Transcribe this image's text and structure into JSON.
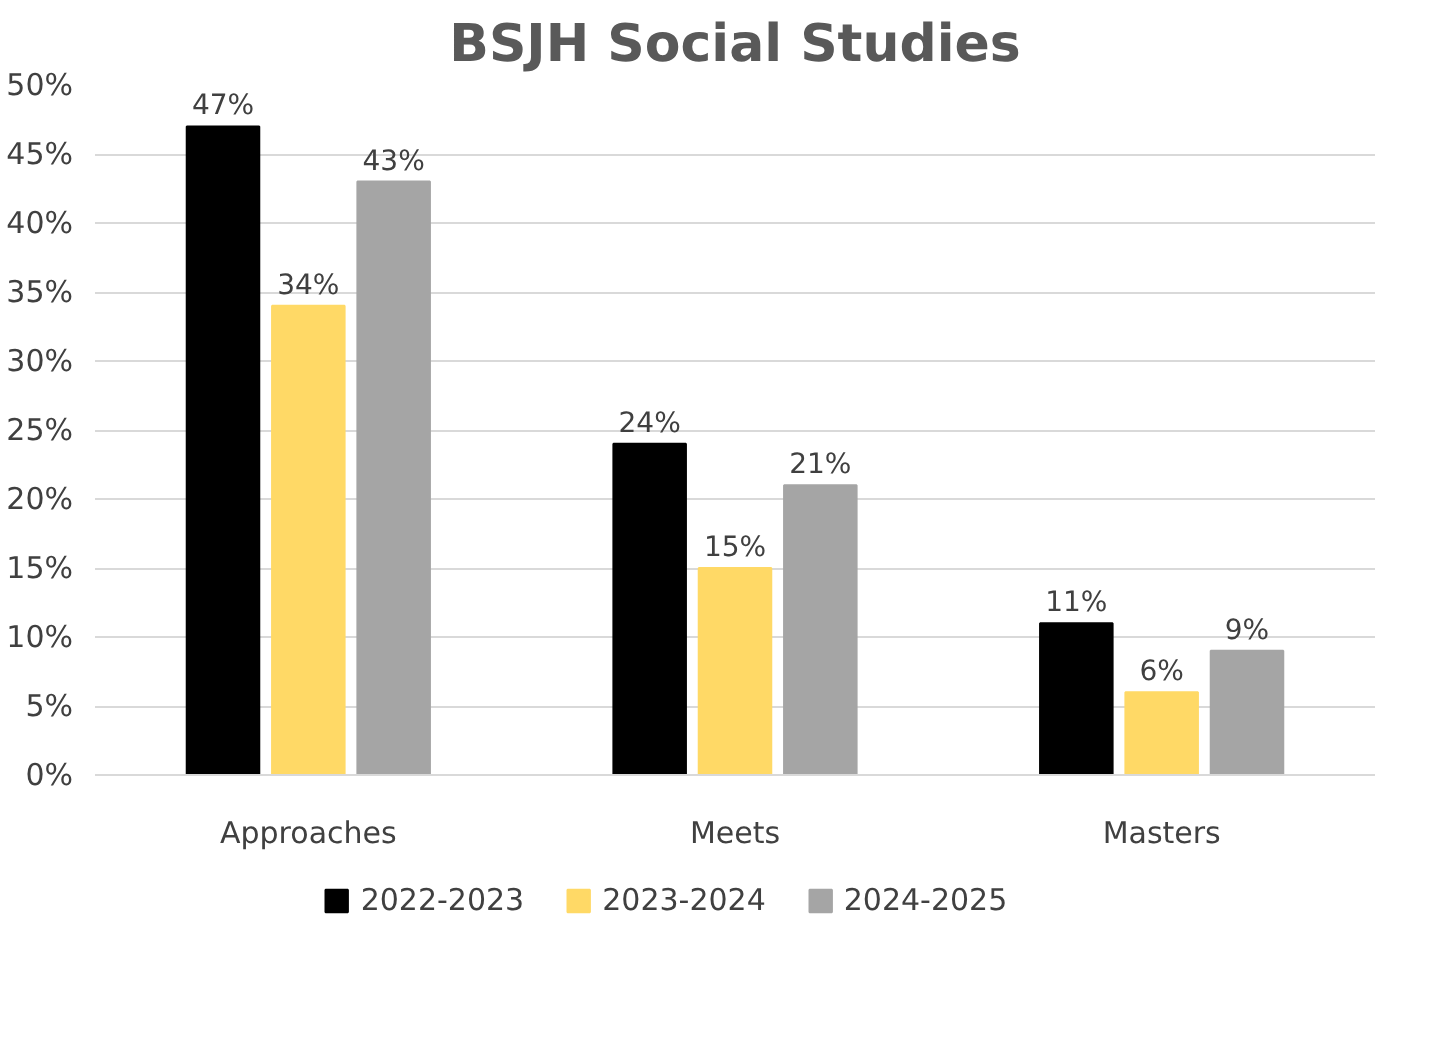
{
  "chart_data": {
    "type": "bar",
    "title": "BSJH Social Studies",
    "categories": [
      "Approaches",
      "Meets",
      "Masters"
    ],
    "series": [
      {
        "name": "2022-2023",
        "color": "#000000",
        "values": [
          47,
          24,
          11
        ],
        "value_labels": [
          "47%",
          "24%",
          "11%"
        ]
      },
      {
        "name": "2023-2024",
        "color": "#ffd966",
        "values": [
          34,
          15,
          6
        ],
        "value_labels": [
          "34%",
          "15%",
          "6%"
        ]
      },
      {
        "name": "2024-2025",
        "color": "#a5a5a5",
        "values": [
          43,
          21,
          9
        ],
        "value_labels": [
          "43%",
          "21%",
          "9%"
        ]
      }
    ],
    "ylim": [
      0,
      50
    ],
    "yticks": [
      {
        "value": 0,
        "label": "0%"
      },
      {
        "value": 5,
        "label": "5%"
      },
      {
        "value": 10,
        "label": "10%"
      },
      {
        "value": 15,
        "label": "15%"
      },
      {
        "value": 20,
        "label": "20%"
      },
      {
        "value": 25,
        "label": "25%"
      },
      {
        "value": 30,
        "label": "30%"
      },
      {
        "value": 35,
        "label": "35%"
      },
      {
        "value": 40,
        "label": "40%"
      },
      {
        "value": 45,
        "label": "45%"
      },
      {
        "value": 50,
        "label": "50%"
      }
    ],
    "grid": "y",
    "legend": "bottom"
  }
}
